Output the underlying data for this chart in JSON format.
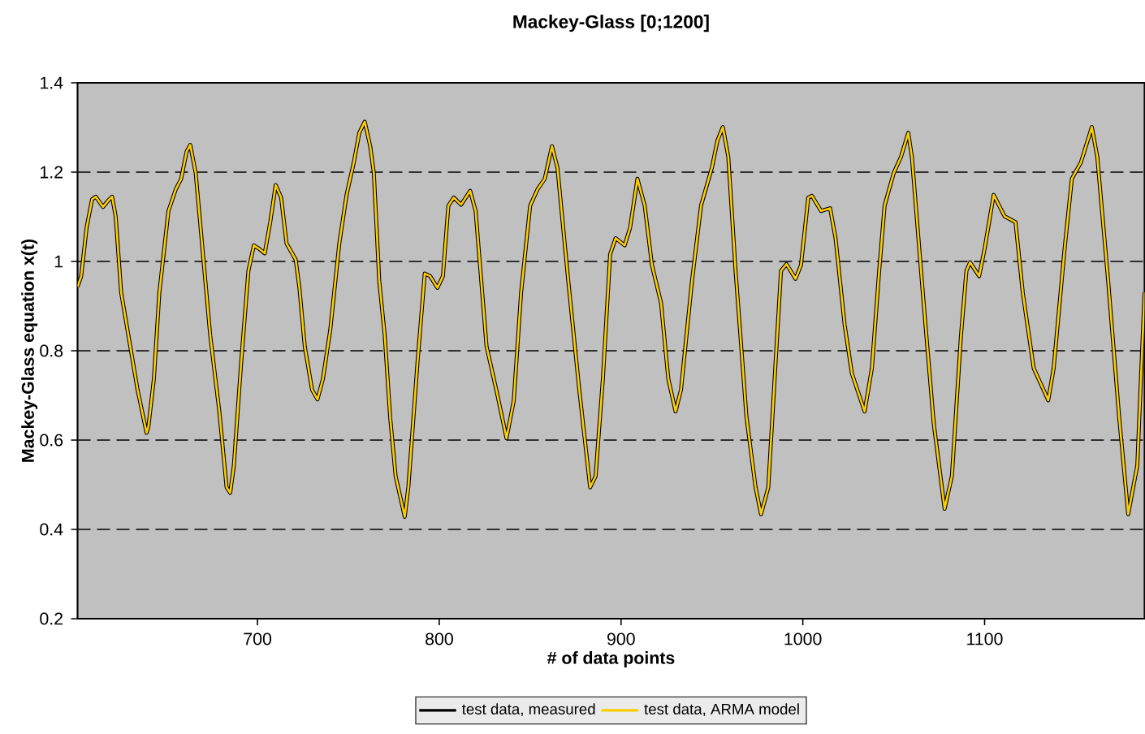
{
  "chart_data": {
    "type": "line",
    "title": "Mackey-Glass [0;1200]",
    "xlabel": "# of data points",
    "ylabel": "Mackey-Glass equation x(t)",
    "x": [
      601,
      603,
      606,
      609,
      611,
      615,
      618,
      620,
      622,
      625,
      630,
      634,
      639,
      640,
      643,
      646,
      651,
      655,
      658,
      661,
      663,
      666,
      670,
      674,
      679,
      683,
      685,
      687,
      691,
      695,
      698,
      701,
      704,
      707,
      710,
      713,
      716,
      721,
      723,
      726,
      730,
      733,
      736,
      740,
      745,
      749,
      753,
      756,
      759,
      762,
      764,
      767,
      770,
      773,
      776,
      781,
      783,
      788,
      792,
      795,
      799,
      802,
      805,
      808,
      812,
      817,
      820,
      826,
      832,
      837,
      841,
      845,
      850,
      854,
      858,
      862,
      865,
      871,
      877,
      883,
      886,
      890,
      894,
      897,
      902,
      905,
      909,
      913,
      917,
      922,
      926,
      930,
      933,
      939,
      944,
      950,
      953,
      956,
      959,
      963,
      969,
      974,
      977,
      981,
      985,
      988,
      991,
      996,
      999,
      1003,
      1005,
      1010,
      1015,
      1018,
      1023,
      1027,
      1034,
      1038,
      1042,
      1045,
      1050,
      1054,
      1058,
      1060,
      1066,
      1072,
      1078,
      1082,
      1087,
      1090,
      1092,
      1097,
      1100,
      1105,
      1111,
      1117,
      1121,
      1127,
      1135,
      1138,
      1144,
      1148,
      1153,
      1159,
      1162,
      1168,
      1174,
      1179,
      1184,
      1188
    ],
    "series": [
      {
        "name": "test data, measured",
        "color": "#000000",
        "values": [
          0.943,
          0.967,
          1.076,
          1.139,
          1.145,
          1.122,
          1.137,
          1.145,
          1.1,
          0.93,
          0.81,
          0.713,
          0.616,
          0.63,
          0.737,
          0.93,
          1.113,
          1.161,
          1.185,
          1.246,
          1.261,
          1.198,
          1.016,
          0.834,
          0.664,
          0.494,
          0.482,
          0.543,
          0.773,
          0.979,
          1.036,
          1.028,
          1.018,
          1.088,
          1.171,
          1.143,
          1.04,
          1.004,
          0.943,
          0.81,
          0.713,
          0.691,
          0.737,
          0.846,
          1.04,
          1.149,
          1.222,
          1.288,
          1.313,
          1.258,
          1.198,
          0.955,
          0.834,
          0.65,
          0.519,
          0.428,
          0.495,
          0.773,
          0.973,
          0.967,
          0.941,
          0.967,
          1.125,
          1.143,
          1.127,
          1.158,
          1.113,
          0.81,
          0.701,
          0.604,
          0.689,
          0.93,
          1.125,
          1.161,
          1.185,
          1.258,
          1.21,
          0.955,
          0.713,
          0.494,
          0.519,
          0.737,
          1.016,
          1.052,
          1.036,
          1.076,
          1.185,
          1.125,
          0.992,
          0.907,
          0.737,
          0.664,
          0.713,
          0.955,
          1.125,
          1.21,
          1.27,
          1.301,
          1.234,
          0.979,
          0.652,
          0.494,
          0.434,
          0.494,
          0.773,
          0.979,
          0.994,
          0.961,
          0.992,
          1.143,
          1.147,
          1.113,
          1.119,
          1.052,
          0.858,
          0.749,
          0.664,
          0.761,
          0.979,
          1.125,
          1.198,
          1.234,
          1.288,
          1.234,
          0.93,
          0.638,
          0.446,
          0.519,
          0.834,
          0.979,
          0.998,
          0.967,
          1.028,
          1.149,
          1.101,
          1.088,
          0.93,
          0.761,
          0.689,
          0.761,
          1.028,
          1.185,
          1.222,
          1.301,
          1.234,
          0.955,
          0.652,
          0.434,
          0.543,
          0.931
        ]
      },
      {
        "name": "test data, ARMA model",
        "color": "#ffcc00",
        "values": [
          0.943,
          0.967,
          1.076,
          1.139,
          1.145,
          1.122,
          1.137,
          1.145,
          1.1,
          0.93,
          0.81,
          0.713,
          0.616,
          0.63,
          0.737,
          0.93,
          1.113,
          1.161,
          1.185,
          1.246,
          1.261,
          1.198,
          1.016,
          0.834,
          0.664,
          0.494,
          0.482,
          0.543,
          0.773,
          0.979,
          1.036,
          1.028,
          1.018,
          1.088,
          1.171,
          1.143,
          1.04,
          1.004,
          0.943,
          0.81,
          0.713,
          0.691,
          0.737,
          0.846,
          1.04,
          1.149,
          1.222,
          1.288,
          1.313,
          1.258,
          1.198,
          0.955,
          0.834,
          0.65,
          0.519,
          0.428,
          0.495,
          0.773,
          0.973,
          0.967,
          0.941,
          0.967,
          1.125,
          1.143,
          1.127,
          1.158,
          1.113,
          0.81,
          0.701,
          0.604,
          0.689,
          0.93,
          1.125,
          1.161,
          1.185,
          1.258,
          1.21,
          0.955,
          0.713,
          0.494,
          0.519,
          0.737,
          1.016,
          1.052,
          1.036,
          1.076,
          1.185,
          1.125,
          0.992,
          0.907,
          0.737,
          0.664,
          0.713,
          0.955,
          1.125,
          1.21,
          1.27,
          1.301,
          1.234,
          0.979,
          0.652,
          0.494,
          0.434,
          0.494,
          0.773,
          0.979,
          0.994,
          0.961,
          0.992,
          1.143,
          1.147,
          1.113,
          1.119,
          1.052,
          0.858,
          0.749,
          0.664,
          0.761,
          0.979,
          1.125,
          1.198,
          1.234,
          1.288,
          1.234,
          0.93,
          0.638,
          0.446,
          0.519,
          0.834,
          0.979,
          0.998,
          0.967,
          1.028,
          1.149,
          1.101,
          1.088,
          0.93,
          0.761,
          0.689,
          0.761,
          1.028,
          1.185,
          1.222,
          1.301,
          1.234,
          0.955,
          0.652,
          0.434,
          0.543,
          0.931
        ]
      }
    ],
    "xlim": [
      601,
      1188
    ],
    "ylim": [
      0.2,
      1.4
    ],
    "xticks": [
      700,
      800,
      900,
      1000,
      1100
    ],
    "yticks": [
      0.2,
      0.4,
      0.6,
      0.8,
      1,
      1.2,
      1.4
    ],
    "grid": "y",
    "legend": "bottom"
  }
}
